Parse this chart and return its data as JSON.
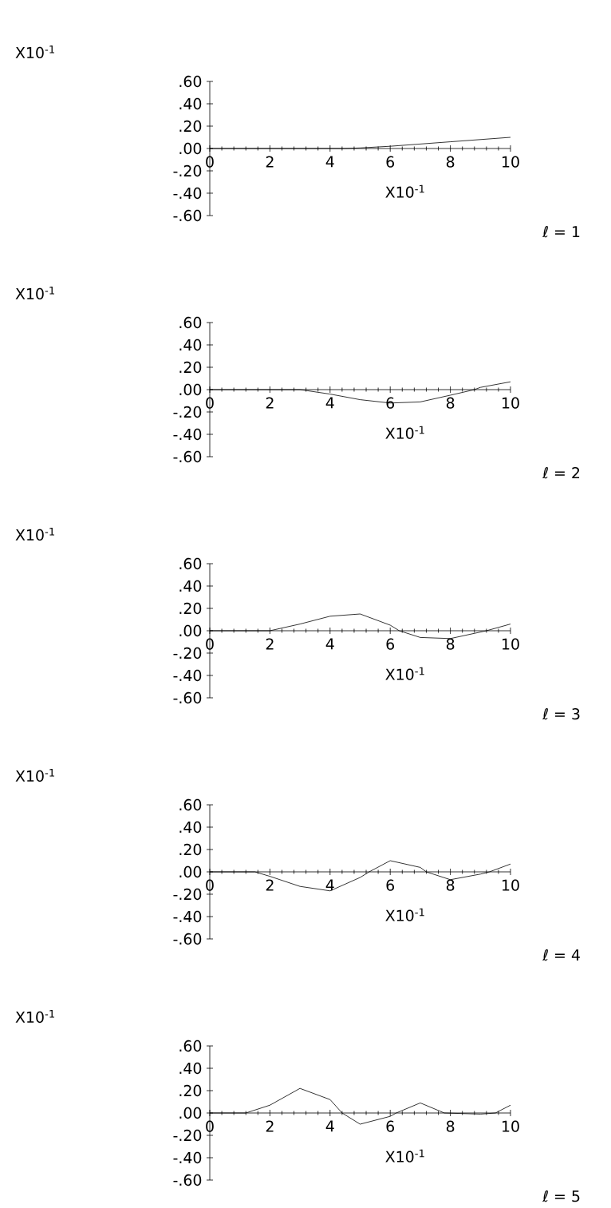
{
  "chart_data": [
    {
      "type": "line",
      "xlabel": "X10$^{-1}$",
      "annotations": [
        "X10$^{-1}$",
        "ℓ = 1"
      ],
      "xlim": [
        0,
        10
      ],
      "ylim": [
        -0.6,
        0.6
      ],
      "xticks": [
        0,
        2,
        4,
        6,
        8,
        10
      ],
      "yticks": [
        {
          "value": 0.6,
          "label": ".60"
        },
        {
          "value": 0.4,
          "label": ".40"
        },
        {
          "value": 0.2,
          "label": ".20"
        },
        {
          "value": 0,
          "label": ".00"
        },
        {
          "value": -0.2,
          "label": "-.20"
        },
        {
          "value": -0.4,
          "label": "-.40"
        },
        {
          "value": -0.6,
          "label": "-.60"
        }
      ],
      "series": [
        {
          "color": "#000000",
          "x": [
            0,
            4.5,
            5,
            6,
            8,
            10
          ],
          "values": [
            0,
            0,
            0.005,
            0.02,
            0.06,
            0.1
          ]
        }
      ]
    },
    {
      "type": "line",
      "xlabel": "X10$^{-1}$",
      "annotations": [
        "X10$^{-1}$",
        "ℓ = 2"
      ],
      "xlim": [
        0,
        10
      ],
      "ylim": [
        -0.6,
        0.6
      ],
      "xticks": [
        0,
        2,
        4,
        6,
        8,
        10
      ],
      "yticks": [
        {
          "value": 0.6,
          "label": ".60"
        },
        {
          "value": 0.4,
          "label": ".40"
        },
        {
          "value": 0.2,
          "label": ".20"
        },
        {
          "value": 0,
          "label": ".00"
        },
        {
          "value": -0.2,
          "label": "-.20"
        },
        {
          "value": -0.4,
          "label": "-.40"
        },
        {
          "value": -0.6,
          "label": "-.60"
        }
      ],
      "series": [
        {
          "color": "#000000",
          "x": [
            0,
            3,
            4,
            5,
            6,
            7,
            8,
            8.8,
            9,
            10
          ],
          "values": [
            0,
            0,
            -0.04,
            -0.09,
            -0.12,
            -0.11,
            -0.05,
            0,
            0.02,
            0.07
          ]
        }
      ]
    },
    {
      "type": "line",
      "xlabel": "X10$^{-1}$",
      "annotations": [
        "X10$^{-1}$",
        "ℓ = 3"
      ],
      "xlim": [
        0,
        10
      ],
      "ylim": [
        -0.6,
        0.6
      ],
      "xticks": [
        0,
        2,
        4,
        6,
        8,
        10
      ],
      "yticks": [
        {
          "value": 0.6,
          "label": ".60"
        },
        {
          "value": 0.4,
          "label": ".40"
        },
        {
          "value": 0.2,
          "label": ".20"
        },
        {
          "value": 0,
          "label": ".00"
        },
        {
          "value": -0.2,
          "label": "-.20"
        },
        {
          "value": -0.4,
          "label": "-.40"
        },
        {
          "value": -0.6,
          "label": "-.60"
        }
      ],
      "series": [
        {
          "color": "#000000",
          "x": [
            0,
            2,
            3,
            4,
            5,
            6,
            6.3,
            7,
            8,
            9.2,
            10
          ],
          "values": [
            0,
            0,
            0.06,
            0.13,
            0.15,
            0.05,
            0,
            -0.06,
            -0.07,
            0,
            0.06
          ]
        }
      ]
    },
    {
      "type": "line",
      "xlabel": "X10$^{-1}$",
      "annotations": [
        "X10$^{-1}$",
        "ℓ = 4"
      ],
      "xlim": [
        0,
        10
      ],
      "ylim": [
        -0.6,
        0.6
      ],
      "xticks": [
        0,
        2,
        4,
        6,
        8,
        10
      ],
      "yticks": [
        {
          "value": 0.6,
          "label": ".60"
        },
        {
          "value": 0.4,
          "label": ".40"
        },
        {
          "value": 0.2,
          "label": ".20"
        },
        {
          "value": 0,
          "label": ".00"
        },
        {
          "value": -0.2,
          "label": "-.20"
        },
        {
          "value": -0.4,
          "label": "-.40"
        },
        {
          "value": -0.6,
          "label": "-.60"
        }
      ],
      "series": [
        {
          "color": "#000000",
          "x": [
            0,
            1.5,
            2,
            3,
            4,
            5,
            5.3,
            6,
            7,
            7.2,
            8,
            9,
            9.3,
            10
          ],
          "values": [
            0,
            0,
            -0.04,
            -0.13,
            -0.17,
            -0.05,
            0,
            0.1,
            0.04,
            0,
            -0.07,
            -0.02,
            0,
            0.07
          ]
        }
      ]
    },
    {
      "type": "line",
      "xlabel": "X10$^{-1}$",
      "annotations": [
        "X10$^{-1}$",
        "ℓ = 5"
      ],
      "xlim": [
        0,
        10
      ],
      "ylim": [
        -0.6,
        0.6
      ],
      "xticks": [
        0,
        2,
        4,
        6,
        8,
        10
      ],
      "yticks": [
        {
          "value": 0.6,
          "label": ".60"
        },
        {
          "value": 0.4,
          "label": ".40"
        },
        {
          "value": 0.2,
          "label": ".20"
        },
        {
          "value": 0,
          "label": ".00"
        },
        {
          "value": -0.2,
          "label": "-.20"
        },
        {
          "value": -0.4,
          "label": "-.40"
        },
        {
          "value": -0.6,
          "label": "-.60"
        }
      ],
      "series": [
        {
          "color": "#000000",
          "x": [
            0,
            1.2,
            2,
            3,
            4,
            4.4,
            5,
            6,
            6.2,
            7,
            7.8,
            9,
            9.5,
            10
          ],
          "values": [
            0,
            0,
            0.07,
            0.22,
            0.12,
            0,
            -0.1,
            -0.03,
            0,
            0.09,
            0,
            -0.01,
            0,
            0.07
          ]
        }
      ]
    }
  ]
}
